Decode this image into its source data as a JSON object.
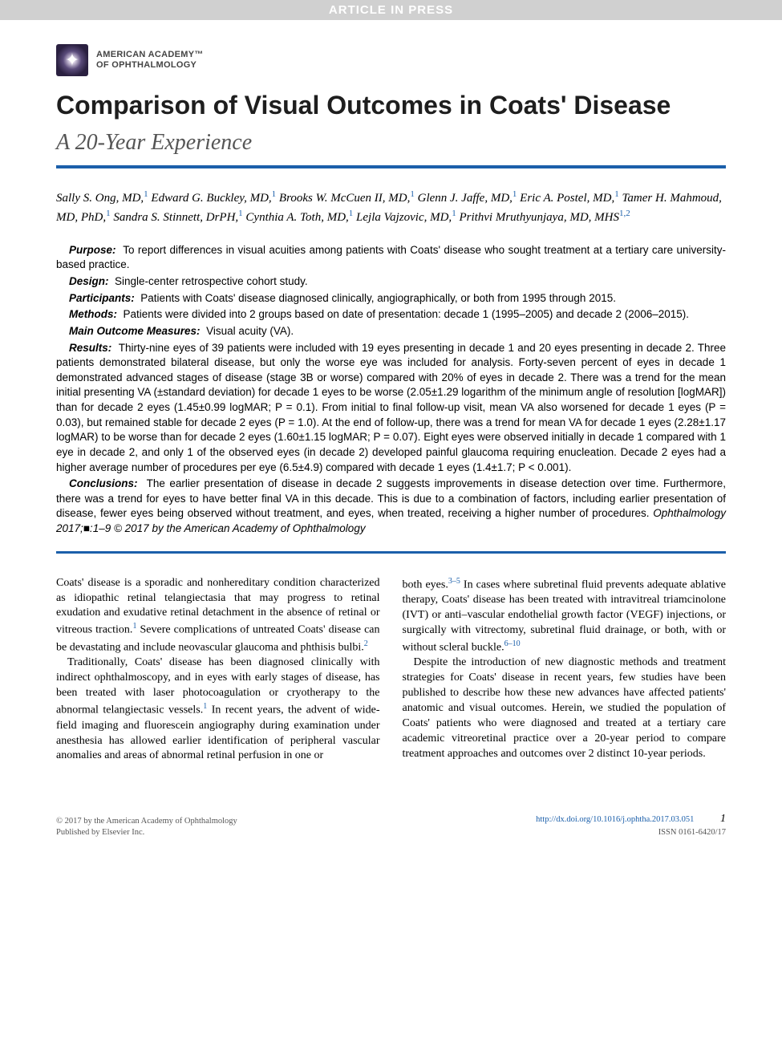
{
  "banner": "ARTICLE IN PRESS",
  "brand": {
    "line1": "AMERICAN ACADEMY™",
    "line2": "OF OPHTHALMOLOGY"
  },
  "title": "Comparison of Visual Outcomes in Coats' Disease",
  "subtitle": "A 20-Year Experience",
  "colors": {
    "rule": "#1b5faa",
    "link": "#1b5faa",
    "banner_bg": "#d0d0d0",
    "banner_text": "#ffffff",
    "text": "#000000",
    "muted": "#555555"
  },
  "typography": {
    "title_font": "Arial",
    "title_size_pt": 24,
    "title_weight": "bold",
    "subtitle_font": "Times New Roman Italic",
    "subtitle_size_pt": 21,
    "body_font": "Times New Roman",
    "body_size_pt": 10.5,
    "abstract_font": "Arial",
    "abstract_size_pt": 10
  },
  "authors_html": "Sally S. Ong, MD,<sup>1</sup> Edward G. Buckley, MD,<sup>1</sup> Brooks W. McCuen II, MD,<sup>1</sup> Glenn J. Jaffe, MD,<sup>1</sup> Eric A. Postel, MD,<sup>1</sup> Tamer H. Mahmoud, MD, PhD,<sup>1</sup> Sandra S. Stinnett, DrPH,<sup>1</sup> Cynthia A. Toth, MD,<sup>1</sup> Lejla Vajzovic, MD,<sup>1</sup> Prithvi Mruthyunjaya, MD, MHS<sup>1,2</sup>",
  "abstract": {
    "purpose": {
      "label": "Purpose:",
      "text": "To report differences in visual acuities among patients with Coats' disease who sought treatment at a tertiary care university-based practice."
    },
    "design": {
      "label": "Design:",
      "text": "Single-center retrospective cohort study."
    },
    "participants": {
      "label": "Participants:",
      "text": "Patients with Coats' disease diagnosed clinically, angiographically, or both from 1995 through 2015."
    },
    "methods": {
      "label": "Methods:",
      "text": "Patients were divided into 2 groups based on date of presentation: decade 1 (1995–2005) and decade 2 (2006–2015)."
    },
    "measures": {
      "label": "Main Outcome Measures:",
      "text": "Visual acuity (VA)."
    },
    "results": {
      "label": "Results:",
      "text": "Thirty-nine eyes of 39 patients were included with 19 eyes presenting in decade 1 and 20 eyes presenting in decade 2. Three patients demonstrated bilateral disease, but only the worse eye was included for analysis. Forty-seven percent of eyes in decade 1 demonstrated advanced stages of disease (stage 3B or worse) compared with 20% of eyes in decade 2. There was a trend for the mean initial presenting VA (±standard deviation) for decade 1 eyes to be worse (2.05±1.29 logarithm of the minimum angle of resolution [logMAR]) than for decade 2 eyes (1.45±0.99 logMAR; P = 0.1). From initial to final follow-up visit, mean VA also worsened for decade 1 eyes (P = 0.03), but remained stable for decade 2 eyes (P = 1.0). At the end of follow-up, there was a trend for mean VA for decade 1 eyes (2.28±1.17 logMAR) to be worse than for decade 2 eyes (1.60±1.15 logMAR; P = 0.07). Eight eyes were observed initially in decade 1 compared with 1 eye in decade 2, and only 1 of the observed eyes (in decade 2) developed painful glaucoma requiring enucleation. Decade 2 eyes had a higher average number of procedures per eye (6.5±4.9) compared with decade 1 eyes (1.4±1.7; P < 0.001)."
    },
    "conclusions": {
      "label": "Conclusions:",
      "text": "The earlier presentation of disease in decade 2 suggests improvements in disease detection over time. Furthermore, there was a trend for eyes to have better final VA in this decade. This is due to a combination of factors, including earlier presentation of disease, fewer eyes being observed without treatment, and eyes, when treated, receiving a higher number of procedures."
    },
    "citation": "Ophthalmology 2017;■:1–9 © 2017 by the American Academy of Ophthalmology"
  },
  "body": {
    "col1": {
      "p1": "Coats' disease is a sporadic and nonhereditary condition characterized as idiopathic retinal telangiectasia that may progress to retinal exudation and exudative retinal detachment in the absence of retinal or vitreous traction.",
      "p1_ref": "1",
      "p1b": " Severe complications of untreated Coats' disease can be devastating and include neovascular glaucoma and phthisis bulbi.",
      "p1b_ref": "2",
      "p2a": "Traditionally, Coats' disease has been diagnosed clinically with indirect ophthalmoscopy, and in eyes with early stages of disease, has been treated with laser photocoagulation or cryotherapy to the abnormal telangiectasic vessels.",
      "p2a_ref": "1",
      "p2b": " In recent years, the advent of wide-field imaging and fluorescein angiography during examination under anesthesia has allowed earlier identification of peripheral vascular anomalies and areas of abnormal retinal perfusion in one or"
    },
    "col2": {
      "p1a": "both eyes.",
      "p1a_ref": "3–5",
      "p1b": " In cases where subretinal fluid prevents adequate ablative therapy, Coats' disease has been treated with intravitreal triamcinolone (IVT) or anti–vascular endothelial growth factor (VEGF) injections, or surgically with vitrectomy, subretinal fluid drainage, or both, with or without scleral buckle.",
      "p1b_ref": "6–10",
      "p2": "Despite the introduction of new diagnostic methods and treatment strategies for Coats' disease in recent years, few studies have been published to describe how these new advances have affected patients' anatomic and visual outcomes. Herein, we studied the population of Coats' patients who were diagnosed and treated at a tertiary care academic vitreoretinal practice over a 20-year period to compare treatment approaches and outcomes over 2 distinct 10-year periods."
    }
  },
  "footer": {
    "copyright": "© 2017 by the American Academy of Ophthalmology",
    "publisher": "Published by Elsevier Inc.",
    "doi": "http://dx.doi.org/10.1016/j.ophtha.2017.03.051",
    "issn": "ISSN 0161-6420/17",
    "page": "1"
  }
}
